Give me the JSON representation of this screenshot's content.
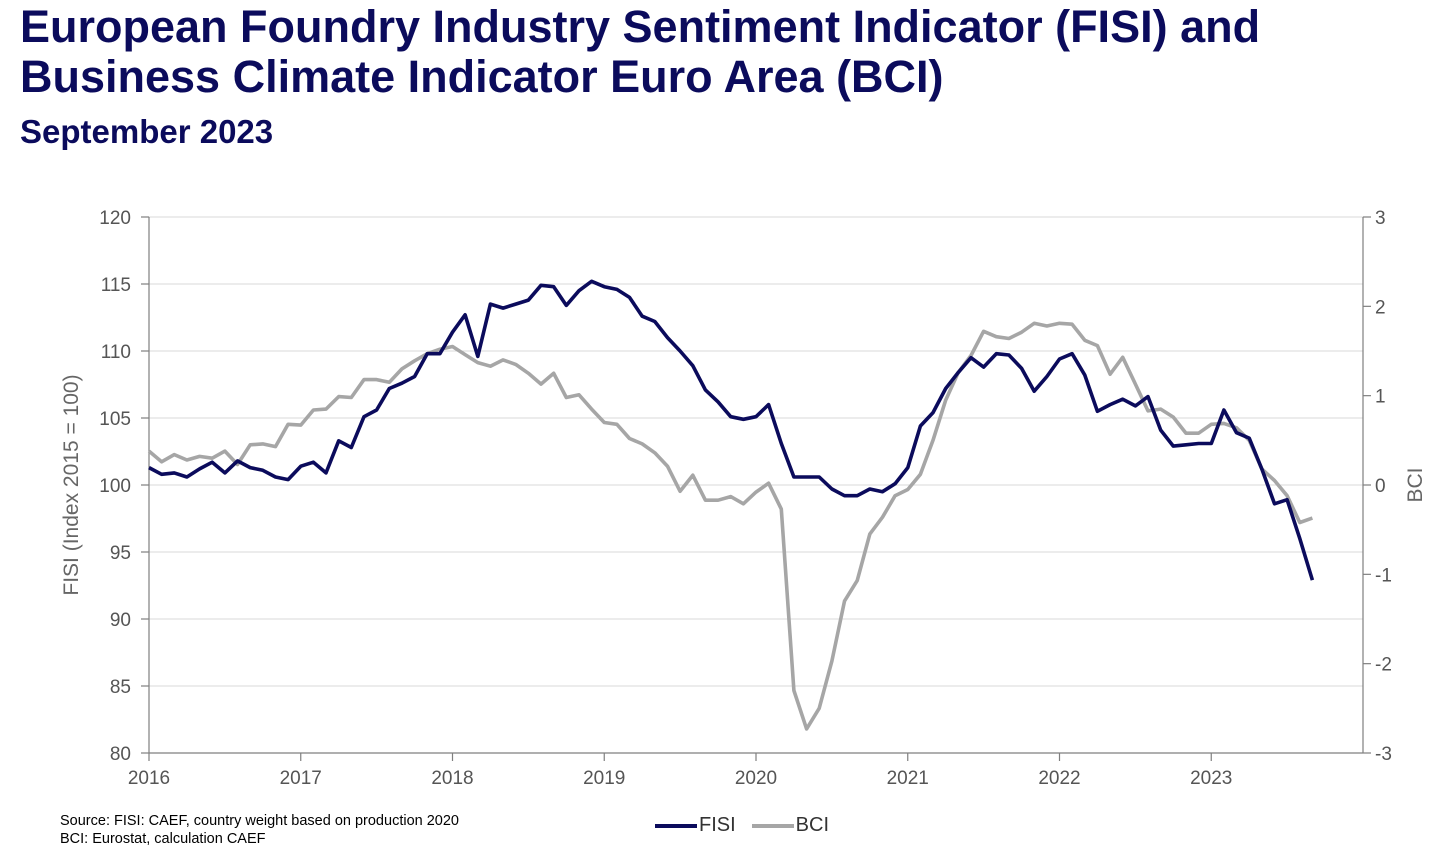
{
  "header": {
    "title_line1": "European Foundry Industry Sentiment Indicator (FISI) and",
    "title_line2": "Business Climate Indicator Euro Area (BCI)",
    "subtitle": "September 2023"
  },
  "footer": {
    "source_line1": "Source: FISI: CAEF, country weight based on production 2020",
    "source_line2": "BCI: Eurostat, calculation CAEF"
  },
  "legend": {
    "fisi": "FISI",
    "bci": "BCI"
  },
  "colors": {
    "fisi": "#0b0b5c",
    "bci": "#a6a6a6",
    "grid": "#d9d9d9",
    "axis": "#7f7f7f"
  },
  "chart_data": {
    "type": "line",
    "xlabel": "",
    "ylabel": "FISI (Index 2015 = 100)",
    "y2label": "BCI",
    "ylim": [
      80,
      120
    ],
    "y2lim": [
      -3,
      3
    ],
    "xlim": [
      2016,
      2024
    ],
    "grid": true,
    "legend_position": "bottom",
    "x_ticks": [
      2016,
      2017,
      2018,
      2019,
      2020,
      2021,
      2022,
      2023
    ],
    "x_tick_labels": [
      "2016",
      "2017",
      "2018",
      "2019",
      "2020",
      "2021",
      "2022",
      "2023"
    ],
    "y_ticks": [
      80,
      85,
      90,
      95,
      100,
      105,
      110,
      115,
      120
    ],
    "y2_ticks": [
      -3,
      -2,
      -1,
      0,
      1,
      2,
      3
    ],
    "y2_tick_labels": [
      "-3",
      "-2",
      "-1",
      "0",
      "1",
      "2",
      "3"
    ],
    "x_start": "2016-01",
    "x_step_months": 1,
    "series": [
      {
        "name": "FISI",
        "axis": "left",
        "values": [
          101.3,
          100.8,
          100.9,
          100.6,
          101.2,
          101.7,
          100.9,
          101.8,
          101.3,
          101.1,
          100.6,
          100.4,
          101.4,
          101.7,
          100.9,
          103.3,
          102.8,
          105.1,
          105.6,
          107.2,
          107.6,
          108.1,
          109.8,
          109.8,
          111.4,
          112.7,
          109.6,
          113.5,
          113.2,
          113.5,
          113.8,
          114.9,
          114.8,
          113.4,
          114.5,
          115.2,
          114.8,
          114.6,
          114.0,
          112.6,
          112.2,
          111.0,
          110.0,
          108.9,
          107.1,
          106.2,
          105.1,
          104.9,
          105.1,
          106.0,
          103.1,
          100.6,
          100.6,
          100.6,
          99.7,
          99.2,
          99.2,
          99.7,
          99.5,
          100.1,
          101.3,
          104.4,
          105.4,
          107.2,
          108.4,
          109.5,
          108.8,
          109.8,
          109.7,
          108.7,
          107.0,
          108.1,
          109.4,
          109.8,
          108.2,
          105.5,
          106.0,
          106.4,
          105.9,
          106.6,
          104.1,
          102.9,
          103.0,
          103.1,
          103.1,
          105.6,
          103.9,
          103.5,
          101.2,
          98.6,
          98.9,
          96.0,
          92.9
        ]
      },
      {
        "name": "BCI",
        "axis": "right",
        "values": [
          0.38,
          0.26,
          0.34,
          0.28,
          0.32,
          0.3,
          0.38,
          0.23,
          0.45,
          0.46,
          0.43,
          0.68,
          0.67,
          0.84,
          0.85,
          0.99,
          0.98,
          1.18,
          1.18,
          1.15,
          1.3,
          1.39,
          1.47,
          1.52,
          1.55,
          1.46,
          1.37,
          1.33,
          1.4,
          1.35,
          1.25,
          1.13,
          1.25,
          0.98,
          1.01,
          0.85,
          0.7,
          0.68,
          0.52,
          0.46,
          0.36,
          0.21,
          -0.07,
          0.11,
          -0.17,
          -0.17,
          -0.13,
          -0.21,
          -0.08,
          0.02,
          -0.27,
          -2.3,
          -2.73,
          -2.5,
          -1.97,
          -1.3,
          -1.07,
          -0.55,
          -0.36,
          -0.12,
          -0.05,
          0.12,
          0.5,
          0.95,
          1.26,
          1.45,
          1.72,
          1.66,
          1.64,
          1.71,
          1.81,
          1.78,
          1.81,
          1.8,
          1.62,
          1.56,
          1.24,
          1.43,
          1.13,
          0.83,
          0.85,
          0.76,
          0.58,
          0.58,
          0.68,
          0.69,
          0.64,
          0.5,
          0.18,
          0.05,
          -0.12,
          -0.42,
          -0.37
        ]
      }
    ]
  }
}
